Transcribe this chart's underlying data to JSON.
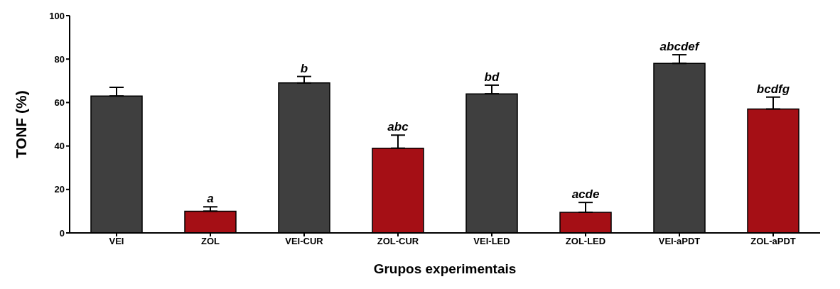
{
  "chart_data": {
    "type": "bar",
    "xlabel": "Grupos experimentais",
    "ylabel": "TONF (%)",
    "categories": [
      "VEI",
      "ZOL",
      "VEI-CUR",
      "ZOL-CUR",
      "VEI-LED",
      "ZOL-LED",
      "VEI-aPDT",
      "ZOL-aPDT"
    ],
    "values": [
      63,
      10,
      69,
      39,
      64,
      9.5,
      78,
      57
    ],
    "colors": [
      "#3f3f3f",
      "#a50f15",
      "#3f3f3f",
      "#a50f15",
      "#3f3f3f",
      "#a50f15",
      "#3f3f3f",
      "#a50f15"
    ],
    "errors": [
      [
        63,
        67
      ],
      [
        10,
        12
      ],
      [
        69,
        72
      ],
      [
        39,
        45
      ],
      [
        64,
        68
      ],
      [
        9.5,
        14
      ],
      [
        78,
        82
      ],
      [
        57,
        62.5
      ]
    ],
    "ylim": [
      0,
      100
    ],
    "yticks": [
      0,
      20,
      40,
      60,
      80,
      100
    ],
    "grid": false,
    "legend": false,
    "annotations": [
      {
        "text": "a",
        "x": "ZOL",
        "y": 10
      },
      {
        "text": "b",
        "x": "VEI-CUR",
        "y": 69
      },
      {
        "text": "abc",
        "x": "ZOL-CUR",
        "y": 39
      },
      {
        "text": "bd",
        "x": "VEI-LED",
        "y": 64
      },
      {
        "text": "acde",
        "x": "ZOL-LED",
        "y": 9.5
      },
      {
        "text": "abcdef",
        "x": "VEI-aPDT",
        "y": 78
      },
      {
        "text": "bcdfg",
        "x": "ZOL-aPDT",
        "y": 57
      }
    ]
  }
}
